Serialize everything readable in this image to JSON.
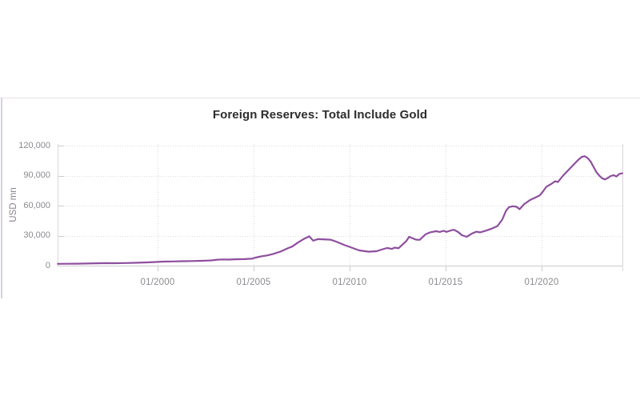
{
  "chart": {
    "title": "Foreign Reserves: Total Include Gold",
    "y_axis": {
      "unit_label": "USD mn",
      "tick_labels": [
        "120,000",
        "90,000",
        "60,000",
        "30,000",
        "0"
      ],
      "ticks": [
        120000,
        90000,
        60000,
        30000,
        0
      ],
      "min": 0,
      "max": 120000
    },
    "x_axis": {
      "tick_labels": [
        "01/2000",
        "01/2005",
        "01/2010",
        "01/2015",
        "01/2020"
      ],
      "tick_years": [
        2000,
        2005,
        2010,
        2015,
        2020
      ]
    },
    "colors": {
      "line": "#8e4e9e",
      "grid_dotted": "#dcdcdc",
      "axis_line": "#cccccc",
      "plot_border": "#ddd6df",
      "label": "#8b8b90",
      "title": "#2d2d2d",
      "card_border_top": "#e6dfe9",
      "card_border_left": "#d9d1dd"
    }
  },
  "chart_data": {
    "type": "line",
    "title": "Foreign Reserves: Total Include Gold",
    "ylabel": "USD mn",
    "unit": "USD mn",
    "ylim": [
      0,
      120000
    ],
    "x_range": [
      1994.8,
      2024.2
    ],
    "x_tick_labels": [
      "01/2000",
      "01/2005",
      "01/2010",
      "01/2015",
      "01/2020"
    ],
    "grid": true,
    "legend_position": "none",
    "series": [
      {
        "name": "Foreign Reserves: Total Include Gold",
        "x": [
          1994.8,
          1995.3,
          1995.8,
          1996.3,
          1996.8,
          1997.3,
          1997.8,
          1998.3,
          1998.8,
          1999.3,
          1999.8,
          2000.3,
          2000.8,
          2001.3,
          2001.8,
          2002.3,
          2002.8,
          2003.1,
          2003.4,
          2003.7,
          2004.0,
          2004.5,
          2004.9,
          2005.1,
          2005.4,
          2005.7,
          2006.0,
          2006.4,
          2006.8,
          2007.0,
          2007.3,
          2007.6,
          2007.9,
          2008.1,
          2008.35,
          2008.6,
          2009.0,
          2009.3,
          2009.7,
          2010.1,
          2010.5,
          2011.0,
          2011.4,
          2011.8,
          2011.95,
          2012.2,
          2012.35,
          2012.55,
          2012.75,
          2012.95,
          2013.1,
          2013.45,
          2013.65,
          2013.95,
          2014.2,
          2014.5,
          2014.7,
          2014.9,
          2015.05,
          2015.35,
          2015.45,
          2015.65,
          2015.85,
          2016.1,
          2016.4,
          2016.6,
          2016.8,
          2017.1,
          2017.4,
          2017.7,
          2017.95,
          2018.15,
          2018.3,
          2018.5,
          2018.7,
          2018.85,
          2019.1,
          2019.4,
          2019.7,
          2019.9,
          2020.05,
          2020.25,
          2020.5,
          2020.7,
          2020.85,
          2021.1,
          2021.3,
          2021.5,
          2021.7,
          2021.9,
          2022.1,
          2022.25,
          2022.4,
          2022.55,
          2022.7,
          2022.85,
          2023.0,
          2023.15,
          2023.3,
          2023.45,
          2023.6,
          2023.75,
          2023.9,
          2024.05,
          2024.2
        ],
        "values": [
          1750,
          1850,
          1950,
          2100,
          2300,
          2500,
          2400,
          2600,
          2800,
          3100,
          3500,
          4000,
          4200,
          4400,
          4600,
          4800,
          5200,
          5900,
          6200,
          6000,
          6300,
          6500,
          6900,
          8000,
          9300,
          10200,
          11500,
          14000,
          17500,
          19000,
          23000,
          26500,
          29300,
          25000,
          26500,
          26300,
          25900,
          24000,
          20800,
          18000,
          15200,
          13900,
          14400,
          16800,
          17600,
          16700,
          18000,
          17400,
          21000,
          24500,
          28800,
          26000,
          25800,
          31200,
          33300,
          34400,
          33700,
          34800,
          33800,
          35600,
          35800,
          33600,
          30400,
          28800,
          32300,
          33900,
          33200,
          35000,
          37000,
          39500,
          46000,
          55000,
          58500,
          59400,
          58800,
          56400,
          61600,
          65600,
          68300,
          70200,
          73600,
          78900,
          81600,
          84300,
          83600,
          89600,
          93600,
          97600,
          101600,
          105600,
          108800,
          109400,
          107500,
          104200,
          98900,
          93600,
          90100,
          87400,
          86200,
          87700,
          89600,
          90400,
          89100,
          91700,
          92300
        ]
      }
    ]
  }
}
